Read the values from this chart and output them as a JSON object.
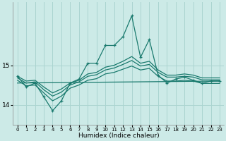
{
  "xlabel": "Humidex (Indice chaleur)",
  "bg_color": "#cceae7",
  "grid_color": "#aad4d0",
  "line_color": "#1a7a6e",
  "xlim": [
    -0.5,
    23.5
  ],
  "ylim": [
    13.5,
    16.6
  ],
  "yticks": [
    14,
    15
  ],
  "xticks": [
    0,
    1,
    2,
    3,
    4,
    5,
    6,
    7,
    8,
    9,
    10,
    11,
    12,
    13,
    14,
    15,
    16,
    17,
    18,
    19,
    20,
    21,
    22,
    23
  ],
  "series_main": {
    "x": [
      0,
      1,
      2,
      3,
      4,
      5,
      6,
      7,
      8,
      9,
      10,
      11,
      12,
      13,
      14,
      15,
      16,
      17,
      18,
      19,
      20,
      21,
      22,
      23
    ],
    "y": [
      14.72,
      14.45,
      14.55,
      14.2,
      13.85,
      14.1,
      14.55,
      14.65,
      15.05,
      15.05,
      15.5,
      15.5,
      15.72,
      16.25,
      15.2,
      15.65,
      14.75,
      14.55,
      14.65,
      14.7,
      14.62,
      14.55,
      14.6,
      14.6
    ]
  },
  "series_avg1": {
    "x": [
      0,
      1,
      2,
      3,
      4,
      5,
      6,
      7,
      8,
      9,
      10,
      11,
      12,
      13,
      14,
      15,
      16,
      17,
      18,
      19,
      20,
      21,
      22,
      23
    ],
    "y": [
      14.72,
      14.6,
      14.62,
      14.45,
      14.3,
      14.4,
      14.55,
      14.62,
      14.78,
      14.82,
      14.95,
      15.0,
      15.1,
      15.22,
      15.05,
      15.1,
      14.88,
      14.75,
      14.75,
      14.78,
      14.75,
      14.68,
      14.68,
      14.68
    ]
  },
  "series_avg2": {
    "x": [
      0,
      1,
      2,
      3,
      4,
      5,
      6,
      7,
      8,
      9,
      10,
      11,
      12,
      13,
      14,
      15,
      16,
      17,
      18,
      19,
      20,
      21,
      22,
      23
    ],
    "y": [
      14.68,
      14.55,
      14.58,
      14.38,
      14.22,
      14.32,
      14.5,
      14.58,
      14.72,
      14.76,
      14.88,
      14.93,
      15.02,
      15.12,
      14.98,
      15.02,
      14.82,
      14.7,
      14.7,
      14.72,
      14.7,
      14.63,
      14.63,
      14.63
    ]
  },
  "series_low": {
    "x": [
      0,
      1,
      2,
      3,
      4,
      5,
      6,
      7,
      8,
      9,
      10,
      11,
      12,
      13,
      14,
      15,
      16,
      17,
      18,
      19,
      20,
      21,
      22,
      23
    ],
    "y": [
      14.62,
      14.48,
      14.5,
      14.3,
      14.1,
      14.22,
      14.42,
      14.5,
      14.62,
      14.66,
      14.78,
      14.82,
      14.9,
      14.98,
      14.88,
      14.92,
      14.72,
      14.6,
      14.6,
      14.62,
      14.6,
      14.54,
      14.54,
      14.54
    ]
  },
  "series_bottom": {
    "x": [
      0,
      23
    ],
    "y": [
      14.55,
      14.6
    ]
  }
}
